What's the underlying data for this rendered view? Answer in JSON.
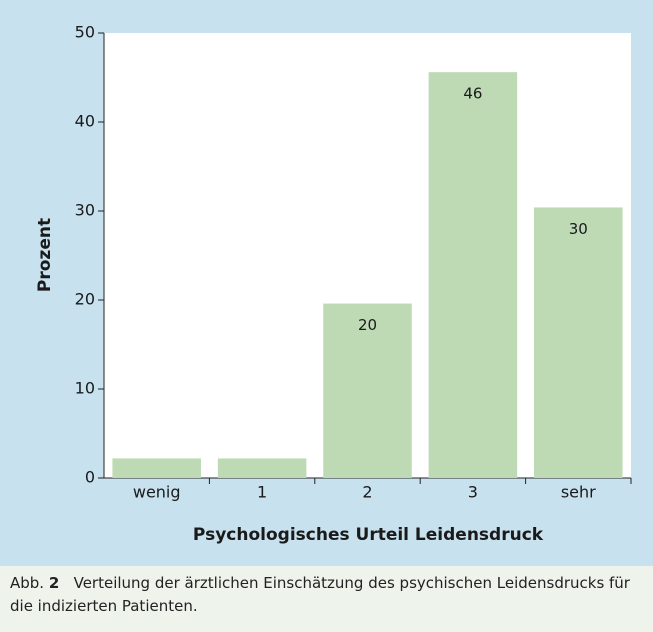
{
  "chart_data": {
    "type": "bar",
    "x_label": "Psychologisches Urteil Leidensdruck",
    "y_label": "Prozent",
    "categories": [
      "wenig",
      "1",
      "2",
      "3",
      "sehr"
    ],
    "values": [
      2.2,
      2.2,
      19.6,
      45.6,
      30.4
    ],
    "value_labels": [
      null,
      null,
      "20",
      "46",
      "30"
    ],
    "color": "#bddab5",
    "ylim": [
      0,
      50
    ],
    "yticks": [
      0,
      10,
      20,
      30,
      40,
      50
    ]
  },
  "caption": {
    "label": "Abb.",
    "number": "2",
    "text": "Verteilung der ärztlichen Einschätzung des psychischen Leidensdrucks für die indizierten Patienten."
  }
}
